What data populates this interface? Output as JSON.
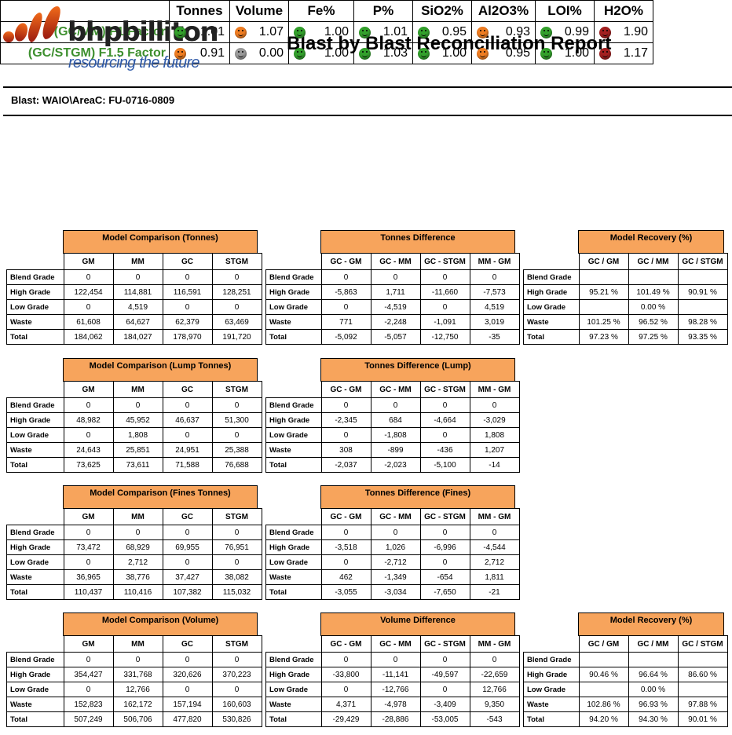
{
  "header": {
    "logo_name": "bhpbilliton",
    "logo_tagline": "resourcing the future",
    "title": "Blast by Blast Reconciliation Report",
    "blast": "Blast: WAIO\\AreaC: FU-0716-0809"
  },
  "colors": {
    "green": "#33a02c",
    "orange": "#ef7d22",
    "grey": "#9a9a9a",
    "red": "#a32020",
    "title_fill": "#f7a45c",
    "label_green": "#3d8f2e"
  },
  "factors": {
    "columns": [
      "Tonnes",
      "Volume",
      "Fe%",
      "P%",
      "SiO2%",
      "Al2O3%",
      "LOI%",
      "H2O%"
    ],
    "rows": [
      {
        "label": "(GC/MM) F1 Factor",
        "cells": [
          {
            "status": "green",
            "value": "1.01"
          },
          {
            "status": "orange",
            "value": "1.07"
          },
          {
            "status": "green",
            "value": "1.00"
          },
          {
            "status": "green",
            "value": "1.01"
          },
          {
            "status": "green",
            "value": "0.95"
          },
          {
            "status": "orange",
            "value": "0.93"
          },
          {
            "status": "green",
            "value": "0.99"
          },
          {
            "status": "red",
            "value": "1.90"
          }
        ]
      },
      {
        "label": "(GC/STGM) F1.5 Factor",
        "cells": [
          {
            "status": "orange",
            "value": "0.91"
          },
          {
            "status": "grey",
            "value": "0.00"
          },
          {
            "status": "green",
            "value": "1.00"
          },
          {
            "status": "green",
            "value": "1.03"
          },
          {
            "status": "green",
            "value": "1.00"
          },
          {
            "status": "orange",
            "value": "0.95"
          },
          {
            "status": "green",
            "value": "1.00"
          },
          {
            "status": "red",
            "value": "1.17"
          }
        ]
      }
    ]
  },
  "row_labels": [
    "Blend Grade",
    "High Grade",
    "Low Grade",
    "Waste",
    "Total"
  ],
  "tables": [
    {
      "id": "mc-tonnes",
      "title": "Model Comparison (Tonnes)",
      "cols": [
        "GM",
        "MM",
        "GC",
        "STGM"
      ],
      "rows": [
        [
          "0",
          "0",
          "0",
          "0"
        ],
        [
          "122,454",
          "114,881",
          "116,591",
          "128,251"
        ],
        [
          "0",
          "4,519",
          "0",
          "0"
        ],
        [
          "61,608",
          "64,627",
          "62,379",
          "63,469"
        ],
        [
          "184,062",
          "184,027",
          "178,970",
          "191,720"
        ]
      ]
    },
    {
      "id": "td-tonnes",
      "title": "Tonnes Difference",
      "cols": [
        "GC - GM",
        "GC - MM",
        "GC - STGM",
        "MM - GM"
      ],
      "rows": [
        [
          "0",
          "0",
          "0",
          "0"
        ],
        [
          "-5,863",
          "1,711",
          "-11,660",
          "-7,573"
        ],
        [
          "0",
          "-4,519",
          "0",
          "4,519"
        ],
        [
          "771",
          "-2,248",
          "-1,091",
          "3,019"
        ],
        [
          "-5,092",
          "-5,057",
          "-12,750",
          "-35"
        ]
      ]
    },
    {
      "id": "mr-tonnes",
      "title": "Model Recovery (%)",
      "cols": [
        "GC / GM",
        "GC / MM",
        "GC / STGM"
      ],
      "rows": [
        [
          "",
          "",
          ""
        ],
        [
          "95.21 %",
          "101.49 %",
          "90.91 %"
        ],
        [
          "",
          "0.00 %",
          ""
        ],
        [
          "101.25 %",
          "96.52 %",
          "98.28 %"
        ],
        [
          "97.23 %",
          "97.25 %",
          "93.35 %"
        ]
      ]
    },
    {
      "id": "mc-lump",
      "title": "Model Comparison (Lump Tonnes)",
      "cols": [
        "GM",
        "MM",
        "GC",
        "STGM"
      ],
      "rows": [
        [
          "0",
          "0",
          "0",
          "0"
        ],
        [
          "48,982",
          "45,952",
          "46,637",
          "51,300"
        ],
        [
          "0",
          "1,808",
          "0",
          "0"
        ],
        [
          "24,643",
          "25,851",
          "24,951",
          "25,388"
        ],
        [
          "73,625",
          "73,611",
          "71,588",
          "76,688"
        ]
      ]
    },
    {
      "id": "td-lump",
      "title": "Tonnes Difference (Lump)",
      "cols": [
        "GC - GM",
        "GC - MM",
        "GC - STGM",
        "MM - GM"
      ],
      "rows": [
        [
          "0",
          "0",
          "0",
          "0"
        ],
        [
          "-2,345",
          "684",
          "-4,664",
          "-3,029"
        ],
        [
          "0",
          "-1,808",
          "0",
          "1,808"
        ],
        [
          "308",
          "-899",
          "-436",
          "1,207"
        ],
        [
          "-2,037",
          "-2,023",
          "-5,100",
          "-14"
        ]
      ]
    },
    {
      "id": "mc-fines",
      "title": "Model Comparison (Fines Tonnes)",
      "cols": [
        "GM",
        "MM",
        "GC",
        "STGM"
      ],
      "rows": [
        [
          "0",
          "0",
          "0",
          "0"
        ],
        [
          "73,472",
          "68,929",
          "69,955",
          "76,951"
        ],
        [
          "0",
          "2,712",
          "0",
          "0"
        ],
        [
          "36,965",
          "38,776",
          "37,427",
          "38,082"
        ],
        [
          "110,437",
          "110,416",
          "107,382",
          "115,032"
        ]
      ]
    },
    {
      "id": "td-fines",
      "title": "Tonnes Difference (Fines)",
      "cols": [
        "GC - GM",
        "GC - MM",
        "GC - STGM",
        "MM - GM"
      ],
      "rows": [
        [
          "0",
          "0",
          "0",
          "0"
        ],
        [
          "-3,518",
          "1,026",
          "-6,996",
          "-4,544"
        ],
        [
          "0",
          "-2,712",
          "0",
          "2,712"
        ],
        [
          "462",
          "-1,349",
          "-654",
          "1,811"
        ],
        [
          "-3,055",
          "-3,034",
          "-7,650",
          "-21"
        ]
      ]
    },
    {
      "id": "mc-volume",
      "title": "Model Comparison (Volume)",
      "cols": [
        "GM",
        "MM",
        "GC",
        "STGM"
      ],
      "rows": [
        [
          "0",
          "0",
          "0",
          "0"
        ],
        [
          "354,427",
          "331,768",
          "320,626",
          "370,223"
        ],
        [
          "0",
          "12,766",
          "0",
          "0"
        ],
        [
          "152,823",
          "162,172",
          "157,194",
          "160,603"
        ],
        [
          "507,249",
          "506,706",
          "477,820",
          "530,826"
        ]
      ]
    },
    {
      "id": "td-volume",
      "title": "Volume Difference",
      "cols": [
        "GC - GM",
        "GC - MM",
        "GC - STGM",
        "MM - GM"
      ],
      "rows": [
        [
          "0",
          "0",
          "0",
          "0"
        ],
        [
          "-33,800",
          "-11,141",
          "-49,597",
          "-22,659"
        ],
        [
          "0",
          "-12,766",
          "0",
          "12,766"
        ],
        [
          "4,371",
          "-4,978",
          "-3,409",
          "9,350"
        ],
        [
          "-29,429",
          "-28,886",
          "-53,005",
          "-543"
        ]
      ]
    },
    {
      "id": "mr-volume",
      "title": "Model Recovery (%)",
      "cols": [
        "GC / GM",
        "GC / MM",
        "GC / STGM"
      ],
      "rows": [
        [
          "",
          "",
          ""
        ],
        [
          "90.46 %",
          "96.64 %",
          "86.60 %"
        ],
        [
          "",
          "0.00 %",
          ""
        ],
        [
          "102.86 %",
          "96.93 %",
          "97.88 %"
        ],
        [
          "94.20 %",
          "94.30 %",
          "90.01 %"
        ]
      ]
    }
  ]
}
